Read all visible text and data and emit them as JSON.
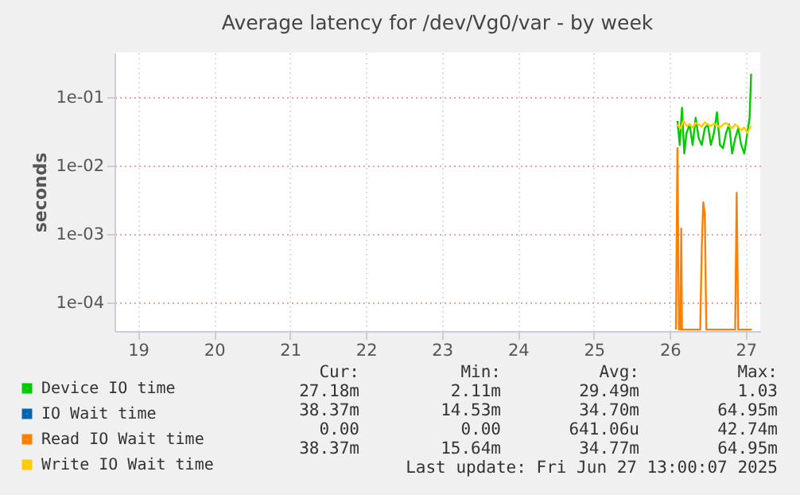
{
  "chart_data": {
    "type": "line",
    "title": "Average latency for /dev/Vg0/var - by week",
    "ylabel": "seconds",
    "log": "y",
    "grid": true,
    "legend": "bottom left",
    "marker": "none",
    "line_style": "solid",
    "xlim": [
      18.69,
      27.19
    ],
    "xticks": [
      19,
      20,
      21,
      22,
      23,
      24,
      25,
      26,
      27
    ],
    "ylim": [
      3.8e-05,
      0.45
    ],
    "yticks": [
      {
        "value": 0.1,
        "label": "1e-01"
      },
      {
        "value": 0.01,
        "label": "1e-02"
      },
      {
        "value": 0.001,
        "label": "1e-03"
      },
      {
        "value": 0.0001,
        "label": "1e-04"
      }
    ],
    "series": [
      {
        "name": "Device IO time",
        "color": "#00cc00",
        "x": [
          26.1,
          26.13,
          26.16,
          26.19,
          26.22,
          26.26,
          26.3,
          26.34,
          26.38,
          26.42,
          26.46,
          26.5,
          26.54,
          26.58,
          26.62,
          26.66,
          26.7,
          26.74,
          26.78,
          26.82,
          26.86,
          26.9,
          26.94,
          26.98,
          27.02,
          27.05,
          27.07
        ],
        "values": [
          0.045,
          0.02,
          0.07,
          0.015,
          0.03,
          0.04,
          0.02,
          0.05,
          0.025,
          0.02,
          0.035,
          0.04,
          0.02,
          0.03,
          0.06,
          0.02,
          0.018,
          0.03,
          0.04,
          0.015,
          0.025,
          0.035,
          0.02,
          0.015,
          0.03,
          0.05,
          0.22
        ]
      },
      {
        "name": "IO Wait time",
        "color": "#0066b3"
      },
      {
        "name": "Read IO Wait time",
        "color": "#ff8000",
        "x": [
          26.08,
          26.1,
          26.12,
          26.14,
          26.15,
          26.16,
          26.4,
          26.42,
          26.44,
          26.46,
          26.48,
          26.86,
          26.88,
          26.9,
          27.08
        ],
        "values": [
          4e-05,
          0.018,
          4e-05,
          4e-05,
          0.0012,
          4e-05,
          4e-05,
          0.0006,
          0.0029,
          0.002,
          4e-05,
          4e-05,
          0.004,
          4e-05,
          4e-05
        ]
      },
      {
        "name": "Write IO Wait time",
        "color": "#ffcc00",
        "x": [
          26.1,
          26.14,
          26.18,
          26.22,
          26.26,
          26.3,
          26.34,
          26.38,
          26.42,
          26.46,
          26.5,
          26.54,
          26.58,
          26.62,
          26.66,
          26.7,
          26.74,
          26.78,
          26.82,
          26.86,
          26.9,
          26.94,
          26.98,
          27.02,
          27.07
        ],
        "values": [
          0.04,
          0.035,
          0.045,
          0.038,
          0.04,
          0.036,
          0.042,
          0.04,
          0.037,
          0.043,
          0.04,
          0.038,
          0.041,
          0.039,
          0.036,
          0.04,
          0.042,
          0.038,
          0.035,
          0.04,
          0.037,
          0.033,
          0.036,
          0.03,
          0.038
        ]
      }
    ],
    "annotations": [
      "Cur:",
      "Min:",
      "Avg:",
      "Max:",
      "27.18m",
      "2.11m",
      "29.49m",
      "1.03",
      "38.37m",
      "14.53m",
      "34.70m",
      "64.95m",
      "0.00",
      "0.00",
      "641.06u",
      "42.74m",
      "38.37m",
      "15.64m",
      "34.77m",
      "64.95m",
      "Last update: Fri Jun 27 13:00:07 2025"
    ]
  }
}
